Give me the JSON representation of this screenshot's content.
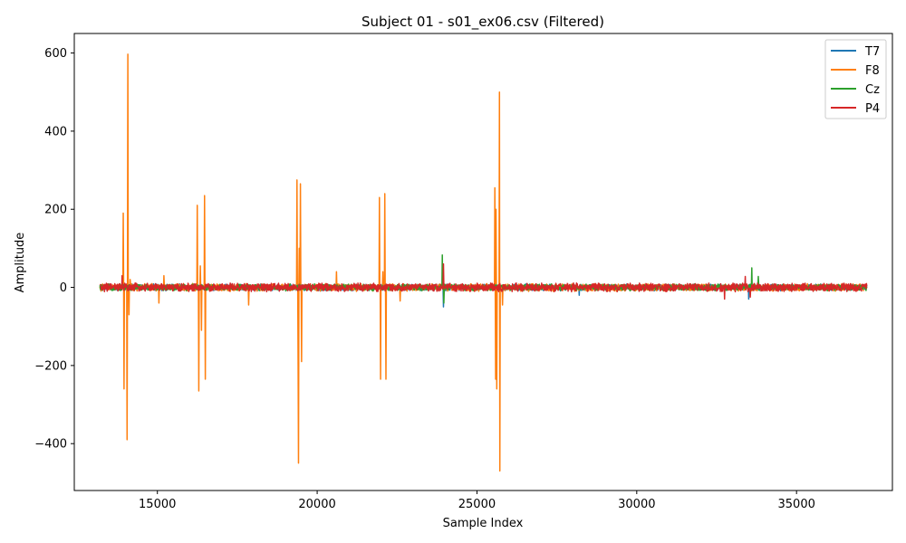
{
  "chart_data": {
    "type": "line",
    "title": "Subject 01 - s01_ex06.csv (Filtered)",
    "xlabel": "Sample Index",
    "ylabel": "Amplitude",
    "xlim": [
      12400,
      38000
    ],
    "ylim": [
      -520,
      650
    ],
    "x_ticks": [
      15000,
      20000,
      25000,
      30000,
      35000
    ],
    "x_tick_labels": [
      "15000",
      "20000",
      "25000",
      "30000",
      "35000"
    ],
    "y_ticks": [
      -400,
      -200,
      0,
      200,
      400,
      600
    ],
    "y_tick_labels": [
      "−400",
      "−200",
      "0",
      "200",
      "400",
      "600"
    ],
    "grid": false,
    "legend_position": "top-right",
    "x_range": [
      13200,
      37200
    ],
    "series": [
      {
        "name": "T7",
        "color": "#1f77b4",
        "noise_amplitude": 7,
        "events": [
          {
            "x": 23950,
            "y": -50
          },
          {
            "x": 28200,
            "y": -20
          },
          {
            "x": 33500,
            "y": -30
          }
        ]
      },
      {
        "name": "F8",
        "color": "#ff7f0e",
        "noise_amplitude": 8,
        "events": [
          {
            "x": 13930,
            "y": 190
          },
          {
            "x": 13960,
            "y": -260
          },
          {
            "x": 14050,
            "y": -390
          },
          {
            "x": 14080,
            "y": 597
          },
          {
            "x": 14110,
            "y": -70
          },
          {
            "x": 14150,
            "y": 20
          },
          {
            "x": 15050,
            "y": -40
          },
          {
            "x": 15200,
            "y": 30
          },
          {
            "x": 16250,
            "y": 210
          },
          {
            "x": 16290,
            "y": -265
          },
          {
            "x": 16340,
            "y": 55
          },
          {
            "x": 16380,
            "y": -110
          },
          {
            "x": 16470,
            "y": 235
          },
          {
            "x": 16500,
            "y": -235
          },
          {
            "x": 17850,
            "y": -45
          },
          {
            "x": 19370,
            "y": 275
          },
          {
            "x": 19400,
            "y": -200
          },
          {
            "x": 19420,
            "y": -450
          },
          {
            "x": 19440,
            "y": 100
          },
          {
            "x": 19480,
            "y": 265
          },
          {
            "x": 19510,
            "y": -190
          },
          {
            "x": 20600,
            "y": 40
          },
          {
            "x": 21950,
            "y": 230
          },
          {
            "x": 21980,
            "y": -235
          },
          {
            "x": 22050,
            "y": 40
          },
          {
            "x": 22120,
            "y": 240
          },
          {
            "x": 22150,
            "y": -235
          },
          {
            "x": 22600,
            "y": -35
          },
          {
            "x": 25560,
            "y": 255
          },
          {
            "x": 25580,
            "y": -235
          },
          {
            "x": 25600,
            "y": 200
          },
          {
            "x": 25620,
            "y": -260
          },
          {
            "x": 25700,
            "y": 500
          },
          {
            "x": 25720,
            "y": -470
          },
          {
            "x": 25800,
            "y": -45
          }
        ]
      },
      {
        "name": "Cz",
        "color": "#2ca02c",
        "noise_amplitude": 7,
        "events": [
          {
            "x": 23920,
            "y": 83
          },
          {
            "x": 23960,
            "y": -40
          },
          {
            "x": 33600,
            "y": 50
          },
          {
            "x": 33800,
            "y": 28
          }
        ]
      },
      {
        "name": "P4",
        "color": "#d62728",
        "noise_amplitude": 9,
        "events": [
          {
            "x": 13900,
            "y": 30
          },
          {
            "x": 23950,
            "y": 60
          },
          {
            "x": 32750,
            "y": -30
          },
          {
            "x": 33400,
            "y": 28
          },
          {
            "x": 33550,
            "y": -25
          }
        ]
      }
    ]
  }
}
